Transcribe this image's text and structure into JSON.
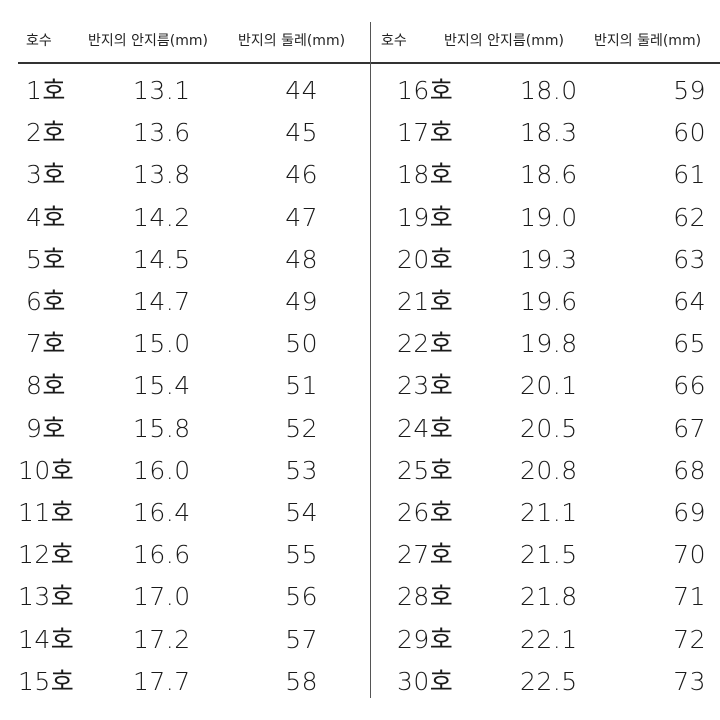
{
  "headers": {
    "size": "호수",
    "inner_diameter": "반지의 안지름(mm)",
    "circumference": "반지의 둘레(mm)"
  },
  "left_rows": [
    {
      "size": "1호",
      "diameter": "13.1",
      "circumference": "44"
    },
    {
      "size": "2호",
      "diameter": "13.6",
      "circumference": "45"
    },
    {
      "size": "3호",
      "diameter": "13.8",
      "circumference": "46"
    },
    {
      "size": "4호",
      "diameter": "14.2",
      "circumference": "47"
    },
    {
      "size": "5호",
      "diameter": "14.5",
      "circumference": "48"
    },
    {
      "size": "6호",
      "diameter": "14.7",
      "circumference": "49"
    },
    {
      "size": "7호",
      "diameter": "15.0",
      "circumference": "50"
    },
    {
      "size": "8호",
      "diameter": "15.4",
      "circumference": "51"
    },
    {
      "size": "9호",
      "diameter": "15.8",
      "circumference": "52"
    },
    {
      "size": "10호",
      "diameter": "16.0",
      "circumference": "53"
    },
    {
      "size": "11호",
      "diameter": "16.4",
      "circumference": "54"
    },
    {
      "size": "12호",
      "diameter": "16.6",
      "circumference": "55"
    },
    {
      "size": "13호",
      "diameter": "17.0",
      "circumference": "56"
    },
    {
      "size": "14호",
      "diameter": "17.2",
      "circumference": "57"
    },
    {
      "size": "15호",
      "diameter": "17.7",
      "circumference": "58"
    }
  ],
  "right_rows": [
    {
      "size": "16호",
      "diameter": "18.0",
      "circumference": "59"
    },
    {
      "size": "17호",
      "diameter": "18.3",
      "circumference": "60"
    },
    {
      "size": "18호",
      "diameter": "18.6",
      "circumference": "61"
    },
    {
      "size": "19호",
      "diameter": "19.0",
      "circumference": "62"
    },
    {
      "size": "20호",
      "diameter": "19.3",
      "circumference": "63"
    },
    {
      "size": "21호",
      "diameter": "19.6",
      "circumference": "64"
    },
    {
      "size": "22호",
      "diameter": "19.8",
      "circumference": "65"
    },
    {
      "size": "23호",
      "diameter": "20.1",
      "circumference": "66"
    },
    {
      "size": "24호",
      "diameter": "20.5",
      "circumference": "67"
    },
    {
      "size": "25호",
      "diameter": "20.8",
      "circumference": "68"
    },
    {
      "size": "26호",
      "diameter": "21.1",
      "circumference": "69"
    },
    {
      "size": "27호",
      "diameter": "21.5",
      "circumference": "70"
    },
    {
      "size": "28호",
      "diameter": "21.8",
      "circumference": "71"
    },
    {
      "size": "29호",
      "diameter": "22.1",
      "circumference": "72"
    },
    {
      "size": "30호",
      "diameter": "22.5",
      "circumference": "73"
    }
  ]
}
